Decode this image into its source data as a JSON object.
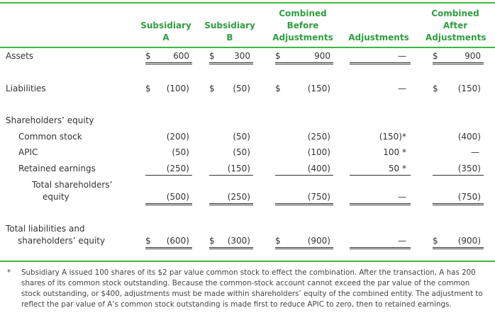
{
  "table": {
    "columns": [
      [
        "Subsidiary",
        "A"
      ],
      [
        "Subsidiary",
        "B"
      ],
      [
        "Combined",
        "Before",
        "Adjustments"
      ],
      [
        "Adjustments"
      ],
      [
        "Combined",
        "After",
        "Adjustments"
      ]
    ],
    "rows": [
      {
        "label": [
          "Assets"
        ],
        "cells": [
          {
            "sign": "$",
            "value": "600"
          },
          {
            "sign": "$",
            "value": "300"
          },
          {
            "sign": "$",
            "value": "900"
          },
          {
            "value": "—"
          },
          {
            "sign": "$",
            "value": "900"
          }
        ]
      },
      {
        "label": [
          "Liabilities"
        ],
        "cells": [
          {
            "sign": "$",
            "value": "(100)"
          },
          {
            "sign": "$",
            "value": "(50)"
          },
          {
            "sign": "$",
            "value": "(150)"
          },
          {
            "value": "—"
          },
          {
            "sign": "$",
            "value": "(150)"
          }
        ]
      },
      {
        "label": [
          "Shareholders’ equity"
        ],
        "cells": []
      },
      {
        "label": [
          "Common stock"
        ],
        "cells": [
          {
            "value": "(200)"
          },
          {
            "value": "(50)"
          },
          {
            "value": "(250)"
          },
          {
            "value": "(150)*"
          },
          {
            "value": "(400)"
          }
        ]
      },
      {
        "label": [
          "APIC"
        ],
        "cells": [
          {
            "value": "(50)"
          },
          {
            "value": "(50)"
          },
          {
            "value": "(100)"
          },
          {
            "value": "100 *"
          },
          {
            "value": "—"
          }
        ]
      },
      {
        "label": [
          "Retained earnings"
        ],
        "cells": [
          {
            "value": "(250)"
          },
          {
            "value": "(150)"
          },
          {
            "value": "(400)"
          },
          {
            "value": "50 *"
          },
          {
            "value": "(350)"
          }
        ]
      },
      {
        "label": [
          "Total shareholders’",
          "equity"
        ],
        "cells": [
          {
            "value": "(500)"
          },
          {
            "value": "(250)"
          },
          {
            "value": "(750)"
          },
          {
            "value": "—"
          },
          {
            "value": "(750)"
          }
        ]
      },
      {
        "label": [
          "Total liabilities and",
          "shareholders’ equity"
        ],
        "cells": [
          {
            "sign": "$",
            "value": "(600)"
          },
          {
            "sign": "$",
            "value": "(300)"
          },
          {
            "sign": "$",
            "value": "(900)"
          },
          {
            "value": "—"
          },
          {
            "sign": "$",
            "value": "(900)"
          }
        ]
      }
    ]
  },
  "footnote": {
    "marker": "*",
    "text": "Subsidiary A issued 100 shares of its $2 par value common stock to effect the combination. After the transaction, A has 200 shares of its common stock outstanding. Because the common-stock account cannot exceed the par value of the common stock outstanding, or $400, adjustments must be made within shareholders’ equity of the combined entity. The adjustment to reflect the par value of A’s common stock outstanding is made first to reduce APIC to zero, then to retained earnings."
  }
}
